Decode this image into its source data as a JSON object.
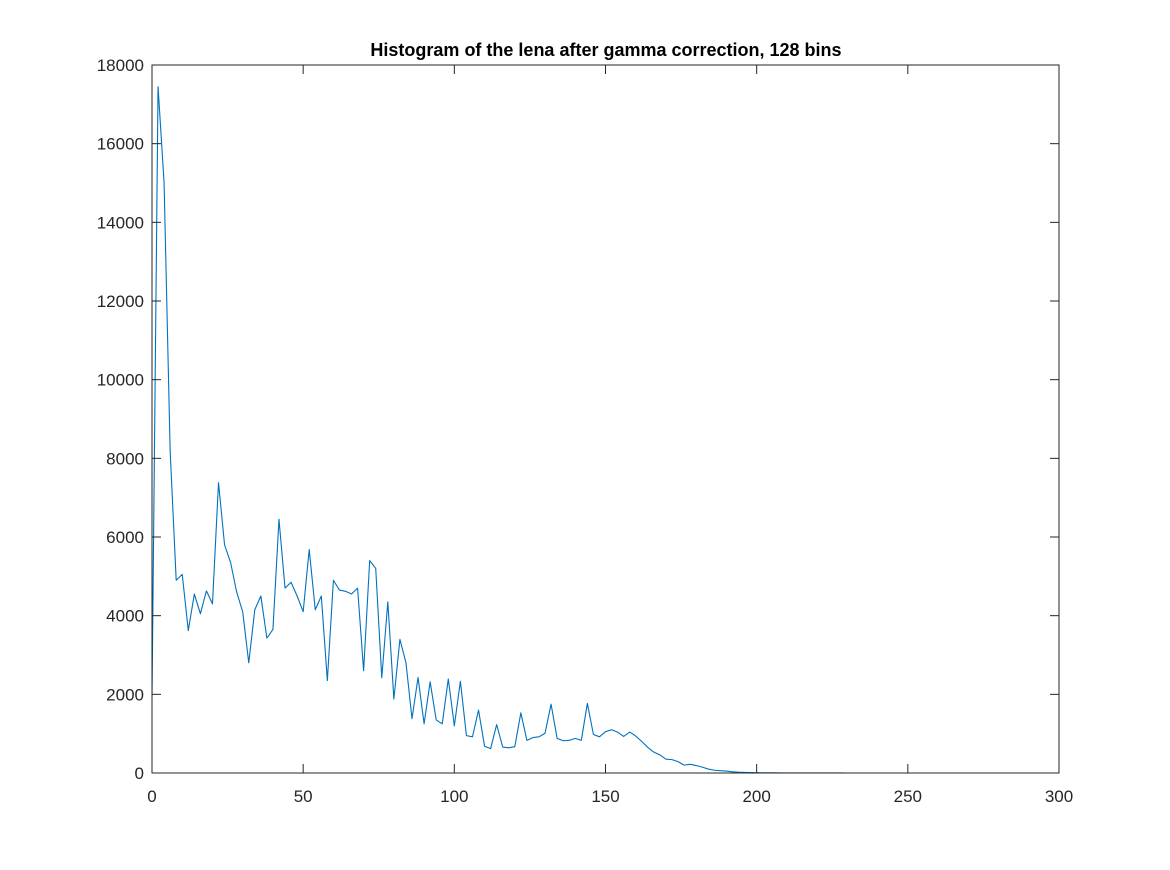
{
  "chart_data": {
    "type": "line",
    "title": "Histogram of the lena after gamma correction, 128 bins",
    "xlabel": "",
    "ylabel": "",
    "xlim": [
      0,
      300
    ],
    "ylim": [
      0,
      18000
    ],
    "xticks": [
      0,
      50,
      100,
      150,
      200,
      250,
      300
    ],
    "yticks": [
      0,
      2000,
      4000,
      6000,
      8000,
      10000,
      12000,
      14000,
      16000,
      18000
    ],
    "grid": false,
    "legend": "none",
    "colors": {
      "line": "#0072BD",
      "axes": "#262626",
      "background": "#ffffff"
    },
    "series": [
      {
        "x": [
          0,
          2,
          4,
          6,
          8,
          10,
          12,
          14,
          16,
          18,
          20,
          22,
          24,
          26,
          28,
          30,
          32,
          34,
          36,
          38,
          40,
          42,
          44,
          46,
          48,
          50,
          52,
          54,
          56,
          58,
          60,
          62,
          64,
          66,
          68,
          70,
          72,
          74,
          76,
          78,
          80,
          82,
          84,
          86,
          88,
          90,
          92,
          94,
          96,
          98,
          100,
          102,
          104,
          106,
          108,
          110,
          112,
          114,
          116,
          118,
          120,
          122,
          124,
          126,
          128,
          130,
          132,
          134,
          136,
          138,
          140,
          142,
          144,
          146,
          148,
          150,
          152,
          154,
          156,
          158,
          160,
          162,
          164,
          166,
          168,
          170,
          172,
          174,
          176,
          178,
          180,
          182,
          184,
          186,
          188,
          190,
          192,
          194,
          196,
          198,
          200,
          202,
          204,
          206,
          208,
          210,
          212,
          214,
          216,
          218,
          220,
          222,
          224,
          226,
          228,
          230,
          232,
          234,
          236,
          238,
          240,
          242,
          244,
          246,
          248,
          250,
          252,
          254
        ],
        "values": [
          1900,
          17450,
          15000,
          8200,
          4900,
          5050,
          3620,
          4550,
          4050,
          4630,
          4300,
          7380,
          5800,
          5350,
          4600,
          4100,
          2800,
          4150,
          4500,
          3430,
          3650,
          6450,
          4700,
          4850,
          4500,
          4100,
          5680,
          4150,
          4500,
          2350,
          4900,
          4650,
          4620,
          4550,
          4700,
          2600,
          5400,
          5200,
          2420,
          4350,
          1880,
          3400,
          2800,
          1380,
          2430,
          1250,
          2320,
          1350,
          1250,
          2390,
          1200,
          2330,
          950,
          920,
          1600,
          680,
          620,
          1230,
          660,
          640,
          670,
          1530,
          830,
          900,
          920,
          1010,
          1750,
          880,
          820,
          830,
          880,
          830,
          1770,
          980,
          920,
          1050,
          1100,
          1040,
          930,
          1040,
          940,
          800,
          650,
          530,
          460,
          350,
          340,
          290,
          200,
          220,
          190,
          150,
          100,
          70,
          60,
          50,
          30,
          20,
          15,
          10,
          8,
          6,
          5,
          4,
          3,
          3,
          2,
          2,
          2,
          1,
          1,
          1,
          1,
          1,
          1,
          0,
          0,
          0,
          0,
          0,
          0,
          0,
          0,
          0,
          0,
          0,
          0,
          0
        ]
      }
    ]
  }
}
